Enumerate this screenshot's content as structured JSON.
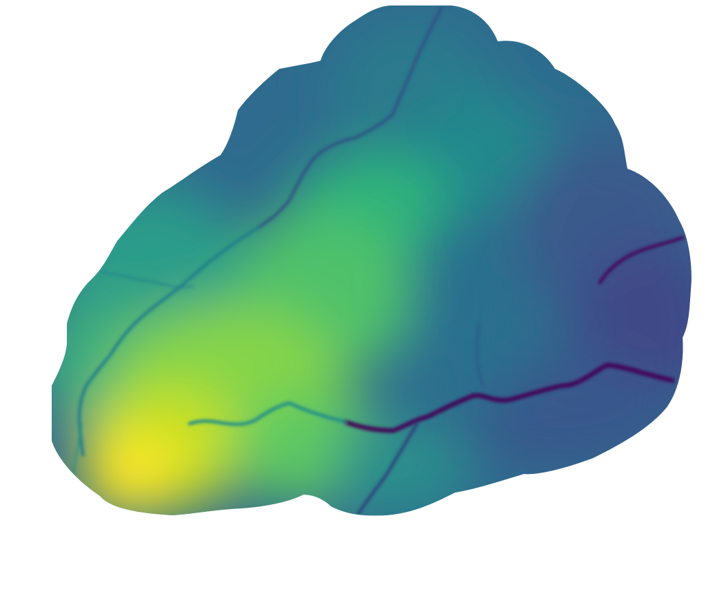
{
  "map": {
    "type": "elevation-raster",
    "colormap": "viridis",
    "colors": {
      "low": "#440154",
      "low_mid": "#3b528b",
      "mid": "#21918c",
      "high_mid": "#5ec962",
      "high": "#fde725",
      "background": "#ffffff"
    },
    "labels": []
  }
}
